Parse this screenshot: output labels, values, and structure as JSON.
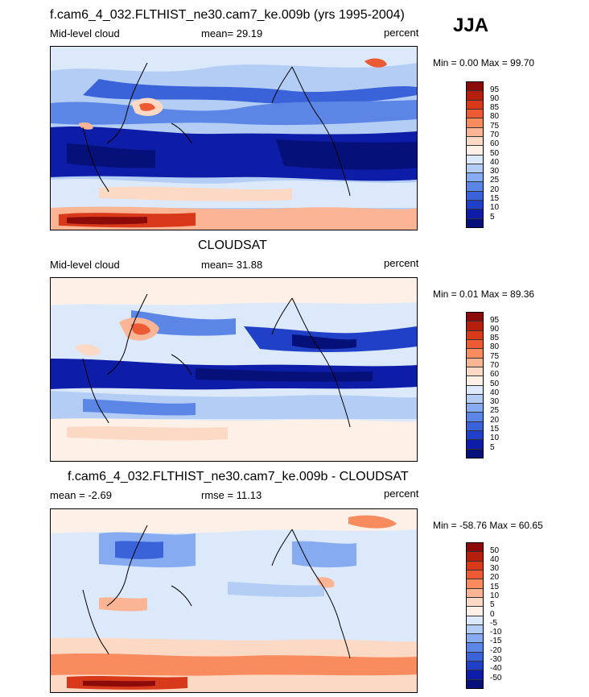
{
  "season": "JJA",
  "panels": [
    {
      "title": "f.cam6_4_032.FLTHIST_ne30.cam7_ke.009b (yrs 1995-2004)",
      "left_label": "Mid-level cloud",
      "center_label": "mean=  29.19",
      "right_label": "percent",
      "minmax": "Min =   0.00 Max =  99.70",
      "colorbar_labels": [
        "95",
        "90",
        "85",
        "80",
        "75",
        "70",
        "60",
        "50",
        "40",
        "30",
        "25",
        "20",
        "15",
        "10",
        "5"
      ],
      "colors": [
        "#8b0b0b",
        "#b51f0d",
        "#d8391a",
        "#ed5b34",
        "#f88c5f",
        "#fbb494",
        "#fcd9c4",
        "#fdf0e6",
        "#dbe9fa",
        "#b3cdf5",
        "#87abf0",
        "#5b86e6",
        "#3a63da",
        "#2040c8",
        "#0e1da8",
        "#051178"
      ]
    },
    {
      "title": "CLOUDSAT",
      "left_label": "Mid-level cloud",
      "center_label": "mean=  31.88",
      "right_label": "percent",
      "minmax": "Min =   0.01 Max =  89.36",
      "colorbar_labels": [
        "95",
        "90",
        "85",
        "80",
        "75",
        "70",
        "60",
        "50",
        "40",
        "30",
        "25",
        "20",
        "15",
        "10",
        "5"
      ],
      "colors": [
        "#8b0b0b",
        "#b51f0d",
        "#d8391a",
        "#ed5b34",
        "#f88c5f",
        "#fbb494",
        "#fcd9c4",
        "#fdf0e6",
        "#dbe9fa",
        "#b3cdf5",
        "#87abf0",
        "#5b86e6",
        "#3a63da",
        "#2040c8",
        "#0e1da8",
        "#051178"
      ]
    },
    {
      "title": "f.cam6_4_032.FLTHIST_ne30.cam7_ke.009b - CLOUDSAT",
      "left_label": "mean =  -2.69",
      "center_label": "rmse =  11.13",
      "right_label": "percent",
      "minmax": "Min = -58.76 Max =  60.65",
      "colorbar_labels": [
        "50",
        "40",
        "30",
        "20",
        "15",
        "10",
        "5",
        "0",
        "-5",
        "-10",
        "-15",
        "-20",
        "-30",
        "-40",
        "-50"
      ],
      "colors": [
        "#8b0b0b",
        "#b51f0d",
        "#d8391a",
        "#ed5b34",
        "#f88c5f",
        "#fbb494",
        "#fcd9c4",
        "#fdf0e6",
        "#dbe9fa",
        "#b3cdf5",
        "#87abf0",
        "#5b86e6",
        "#3a63da",
        "#2040c8",
        "#0e1da8",
        "#051178"
      ]
    }
  ]
}
